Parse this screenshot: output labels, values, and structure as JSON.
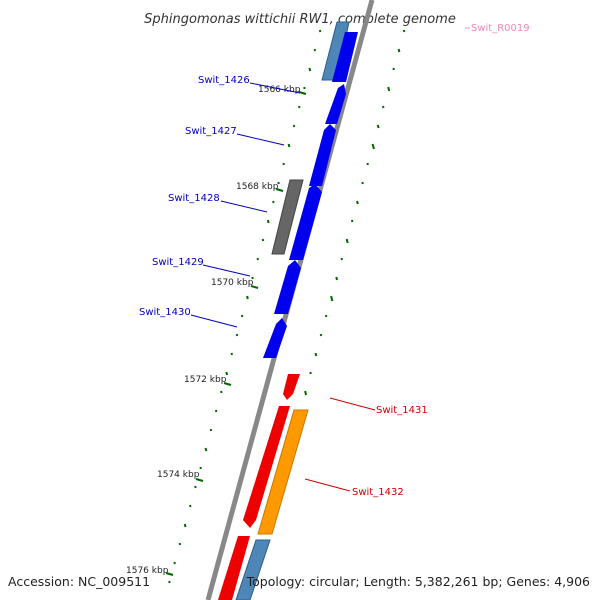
{
  "title": "Sphingomonas wittichii RW1, complete genome",
  "accession": "Accession: NC_009511",
  "topology": "Topology: circular; Length: 5,382,261 bp; Genes: 4,906",
  "colors": {
    "blue": "#0000ee",
    "steel_blue": "#4f86b8",
    "gray": "#666666",
    "red": "#ee0000",
    "orange": "#ff9900",
    "pink": "#ee88bb",
    "backbone": "#888888",
    "gc_dash": "#006600"
  },
  "kbp_labels": [
    "1566 kbp",
    "1568 kbp",
    "1570 kbp",
    "1572 kbp",
    "1574 kbp",
    "1576 kbp"
  ],
  "gene_labels": [
    {
      "text": "Swit_R0019",
      "color": "#ee88bb"
    },
    {
      "text": "Swit_1426",
      "color": "#0000bb"
    },
    {
      "text": "Swit_1427",
      "color": "#0000bb"
    },
    {
      "text": "Swit_1428",
      "color": "#0000bb"
    },
    {
      "text": "Swit_1429",
      "color": "#0000bb"
    },
    {
      "text": "Swit_1430",
      "color": "#0000bb"
    },
    {
      "text": "Swit_1431",
      "color": "#cc0000"
    },
    {
      "text": "Swit_1432",
      "color": "#cc0000"
    }
  ]
}
